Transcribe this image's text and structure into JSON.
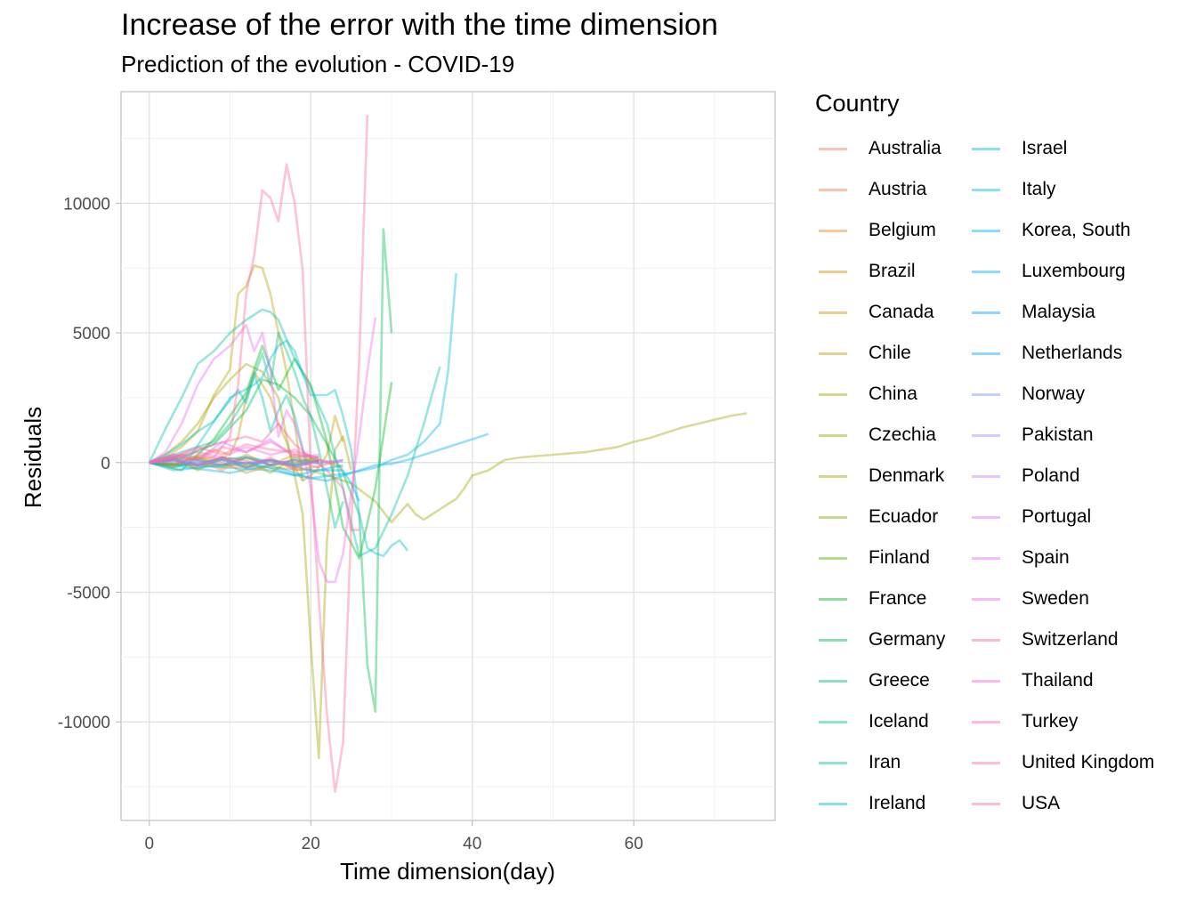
{
  "title": "Increase of the error with the time dimension",
  "subtitle": "Prediction of the evolution - COVID-19",
  "legend": {
    "title": "Country",
    "items": [
      {
        "name": "Australia",
        "color": "#F8766D"
      },
      {
        "name": "Austria",
        "color": "#F27D52"
      },
      {
        "name": "Belgium",
        "color": "#E7861B"
      },
      {
        "name": "Brazil",
        "color": "#D89000"
      },
      {
        "name": "Canada",
        "color": "#C49A00"
      },
      {
        "name": "Chile",
        "color": "#B8A000"
      },
      {
        "name": "China",
        "color": "#A3A500"
      },
      {
        "name": "Czechia",
        "color": "#8FAA00"
      },
      {
        "name": "Denmark",
        "color": "#A3A500"
      },
      {
        "name": "Ecuador",
        "color": "#72B000"
      },
      {
        "name": "Finland",
        "color": "#53B400"
      },
      {
        "name": "France",
        "color": "#00B81F"
      },
      {
        "name": "Germany",
        "color": "#00BB4E"
      },
      {
        "name": "Greece",
        "color": "#00BE70"
      },
      {
        "name": "Iceland",
        "color": "#00C08B"
      },
      {
        "name": "Iran",
        "color": "#00C1A3"
      },
      {
        "name": "Ireland",
        "color": "#00BFB8"
      },
      {
        "name": "Israel",
        "color": "#00BDD0"
      },
      {
        "name": "Italy",
        "color": "#00BAE0"
      },
      {
        "name": "Korea, South",
        "color": "#00B4EF"
      },
      {
        "name": "Luxembourg",
        "color": "#00B0F6"
      },
      {
        "name": "Malaysia",
        "color": "#00A5FF"
      },
      {
        "name": "Netherlands",
        "color": "#00A9FF"
      },
      {
        "name": "Norway",
        "color": "#7997FF"
      },
      {
        "name": "Pakistan",
        "color": "#9590FF"
      },
      {
        "name": "Poland",
        "color": "#C77CFF"
      },
      {
        "name": "Portugal",
        "color": "#DC71FA"
      },
      {
        "name": "Spain",
        "color": "#E76BF3"
      },
      {
        "name": "Sweden",
        "color": "#F564E3"
      },
      {
        "name": "Switzerland",
        "color": "#F8669B"
      },
      {
        "name": "Thailand",
        "color": "#FD61D1"
      },
      {
        "name": "Turkey",
        "color": "#FF62BC"
      },
      {
        "name": "United Kingdom",
        "color": "#FF6C91"
      },
      {
        "name": "USA",
        "color": "#FF6A98"
      }
    ]
  },
  "chart_data": {
    "type": "line",
    "title": "Increase of the error with the time dimension",
    "subtitle": "Prediction of the evolution - COVID-19",
    "xlabel": "Time dimension(day)",
    "ylabel": "Residuals",
    "xlim": [
      -3.5,
      77.5
    ],
    "ylim": [
      -13800,
      14300
    ],
    "xticks": [
      0,
      20,
      40,
      60
    ],
    "xtick_labels": [
      "0",
      "20",
      "40",
      "60"
    ],
    "yticks": [
      10000,
      5000,
      0,
      -5000,
      -10000
    ],
    "ytick_labels": [
      "10000",
      "5000",
      "0",
      "-5000",
      "-10000"
    ],
    "grid": true,
    "legend_position": "right",
    "series": [
      {
        "name": "Canada",
        "x": [
          0,
          2,
          4,
          6,
          8,
          10,
          11,
          12,
          13,
          14,
          15,
          16,
          17,
          18,
          19,
          20,
          21,
          22,
          23,
          24
        ],
        "y": [
          0,
          100,
          300,
          200,
          500,
          300,
          1000,
          2500,
          3500,
          3000,
          2500,
          1500,
          800,
          -200,
          -700,
          -500,
          -200,
          300,
          1800,
          800
        ]
      },
      {
        "name": "Chile",
        "x": [
          0,
          2,
          4,
          6,
          8,
          10,
          11,
          12,
          13,
          14,
          15,
          16,
          17,
          18,
          19
        ],
        "y": [
          0,
          200,
          600,
          1200,
          2600,
          3600,
          6500,
          6800,
          7600,
          7500,
          6500,
          5000,
          3500,
          1500,
          -700
        ]
      },
      {
        "name": "China",
        "x": [
          0,
          10,
          20,
          25,
          28,
          30,
          32,
          33,
          34,
          35,
          36,
          37,
          38,
          39,
          40,
          42,
          44,
          46,
          48,
          50,
          52,
          54,
          56,
          58,
          60,
          62,
          64,
          66,
          68,
          70,
          72,
          74
        ],
        "y": [
          0,
          -100,
          -300,
          -800,
          -1500,
          -2300,
          -1600,
          -2000,
          -2200,
          -2000,
          -1800,
          -1600,
          -1400,
          -1000,
          -500,
          -300,
          100,
          200,
          250,
          300,
          350,
          400,
          500,
          600,
          800,
          950,
          1150,
          1350,
          1500,
          1650,
          1800,
          1900
        ]
      },
      {
        "name": "Denmark",
        "x": [
          0,
          2,
          4,
          6,
          8,
          10,
          12,
          14,
          16,
          18,
          19,
          20,
          21,
          22,
          23,
          24,
          25
        ],
        "y": [
          0,
          300,
          800,
          1500,
          2500,
          3200,
          3800,
          3500,
          2500,
          -500,
          -2000,
          -7000,
          -11400,
          -3000,
          500,
          1000,
          -300
        ]
      },
      {
        "name": "Germany",
        "x": [
          0,
          4,
          8,
          12,
          14,
          16,
          18,
          20,
          22,
          24,
          26,
          27,
          28,
          29,
          30
        ],
        "y": [
          0,
          200,
          700,
          2000,
          3200,
          3000,
          2500,
          1800,
          700,
          -400,
          -2000,
          -7800,
          -9600,
          9000,
          5000
        ]
      },
      {
        "name": "France",
        "x": [
          0,
          4,
          8,
          12,
          14,
          16,
          18,
          20,
          22,
          24,
          26,
          28,
          30
        ],
        "y": [
          0,
          -300,
          900,
          2700,
          4500,
          2800,
          4000,
          3000,
          800,
          -2500,
          -3700,
          -1000,
          3100
        ]
      },
      {
        "name": "Iceland",
        "x": [
          0,
          2,
          4,
          6,
          8,
          10,
          12,
          14,
          15,
          16,
          17,
          18,
          19,
          20,
          21,
          22,
          23,
          24
        ],
        "y": [
          0,
          200,
          400,
          600,
          800,
          1500,
          2500,
          4200,
          3000,
          5000,
          4300,
          3500,
          2500,
          1800,
          500,
          -1000,
          -2500,
          -1500
        ]
      },
      {
        "name": "Iran",
        "x": [
          0,
          2,
          4,
          6,
          8,
          10,
          12,
          14,
          15,
          16,
          18,
          20,
          22,
          24,
          26,
          28,
          30,
          32,
          34,
          36
        ],
        "y": [
          0,
          1300,
          2500,
          3800,
          4300,
          5000,
          5500,
          5900,
          5800,
          5500,
          4000,
          2900,
          1500,
          -1000,
          -3600,
          -3300,
          -2000,
          -500,
          1500,
          3700
        ]
      },
      {
        "name": "Ireland",
        "x": [
          0,
          2,
          4,
          6,
          8,
          10,
          11,
          12,
          13,
          14,
          15,
          16,
          17,
          18,
          19,
          20
        ],
        "y": [
          0,
          300,
          700,
          1200,
          1600,
          2400,
          2800,
          2300,
          3400,
          2500,
          1200,
          2000,
          2600,
          1800,
          500,
          -300
        ]
      },
      {
        "name": "Israel",
        "x": [
          0,
          5,
          10,
          13,
          14,
          15,
          16,
          17,
          18,
          19,
          20,
          21,
          22,
          23,
          24,
          25,
          26,
          27,
          28,
          29,
          30,
          31,
          32
        ],
        "y": [
          0,
          200,
          2500,
          3000,
          3300,
          4000,
          4500,
          4700,
          4300,
          3400,
          2600,
          2600,
          2600,
          2800,
          1800,
          500,
          -2000,
          -3300,
          -3500,
          -3600,
          -3200,
          -3000,
          -3400
        ]
      },
      {
        "name": "Italy",
        "x": [
          0,
          5,
          10,
          15,
          20,
          25,
          28,
          30,
          32,
          34,
          36,
          37,
          38
        ],
        "y": [
          0,
          -200,
          -400,
          -100,
          -600,
          -400,
          -200,
          100,
          300,
          800,
          1500,
          3500,
          7300
        ]
      },
      {
        "name": "Luxembourg",
        "x": [
          0,
          5,
          10,
          15,
          20,
          22,
          24,
          26,
          28,
          30,
          32,
          34,
          36,
          38,
          40,
          42
        ],
        "y": [
          0,
          -100,
          -200,
          -300,
          -600,
          -700,
          -500,
          -300,
          -100,
          -50,
          100,
          300,
          500,
          700,
          900,
          1100
        ]
      },
      {
        "name": "Spain",
        "x": [
          0,
          2,
          4,
          6,
          8,
          10,
          12,
          13,
          14,
          15,
          16,
          17,
          18,
          19,
          20,
          21,
          22,
          23,
          24,
          25,
          26,
          27,
          28
        ],
        "y": [
          0,
          400,
          1500,
          3000,
          4000,
          4500,
          5300,
          4300,
          5000,
          3500,
          1000,
          2000,
          1500,
          500,
          -1000,
          -3800,
          -4600,
          -4600,
          -3500,
          -1200,
          1000,
          3500,
          5600
        ]
      },
      {
        "name": "USA",
        "x": [
          0,
          4,
          8,
          10,
          11,
          12,
          13,
          14,
          15,
          16,
          17,
          18,
          19,
          20,
          21,
          22,
          23,
          24,
          25,
          26,
          27
        ],
        "y": [
          0,
          100,
          200,
          1000,
          3000,
          6500,
          8000,
          10500,
          10200,
          9300,
          11500,
          10000,
          7400,
          -300,
          -5300,
          -9700,
          -12700,
          -10800,
          -2500,
          4000,
          13400
        ]
      },
      {
        "name": "Switzerland",
        "x": [
          0,
          4,
          8,
          12,
          14,
          16,
          18,
          20,
          22,
          24,
          25,
          26
        ],
        "y": [
          0,
          300,
          700,
          1000,
          800,
          1500,
          700,
          200,
          -300,
          -1000,
          -2600,
          -2600
        ]
      },
      {
        "name": "Netherlands",
        "x": [
          0,
          4,
          8,
          12,
          16,
          20,
          24,
          25,
          26
        ],
        "y": [
          0,
          -100,
          100,
          200,
          0,
          -300,
          -300,
          -800,
          -1500
        ]
      },
      {
        "name": "Belgium",
        "x": [
          0,
          3,
          6,
          9,
          12,
          15,
          18,
          21,
          24
        ],
        "y": [
          0,
          -100,
          200,
          0,
          -400,
          -100,
          300,
          100,
          -200
        ]
      },
      {
        "name": "Brazil",
        "x": [
          0,
          3,
          6,
          9,
          12,
          15,
          18,
          21
        ],
        "y": [
          0,
          100,
          -200,
          200,
          -100,
          100,
          -200,
          100
        ]
      },
      {
        "name": "Australia",
        "x": [
          0,
          3,
          6,
          9,
          12,
          15,
          18,
          21,
          24
        ],
        "y": [
          0,
          -150,
          300,
          100,
          -200,
          200,
          -300,
          -150,
          100
        ]
      },
      {
        "name": "Austria",
        "x": [
          0,
          3,
          6,
          9,
          12,
          15,
          18,
          21
        ],
        "y": [
          0,
          200,
          100,
          -300,
          200,
          -100,
          100,
          -200
        ]
      },
      {
        "name": "Czechia",
        "x": [
          0,
          3,
          6,
          9,
          12,
          15,
          18,
          21
        ],
        "y": [
          0,
          200,
          -300,
          200,
          100,
          -400,
          200,
          0
        ]
      },
      {
        "name": "Ecuador",
        "x": [
          0,
          3,
          6,
          9,
          12,
          15,
          18,
          21
        ],
        "y": [
          0,
          -100,
          200,
          -200,
          300,
          -100,
          0,
          200
        ]
      },
      {
        "name": "Finland",
        "x": [
          0,
          3,
          6,
          9,
          12,
          15,
          18,
          21
        ],
        "y": [
          0,
          100,
          -100,
          200,
          -200,
          100,
          -100,
          100
        ]
      },
      {
        "name": "Greece",
        "x": [
          0,
          3,
          6,
          9,
          12,
          15,
          18,
          21
        ],
        "y": [
          0,
          -200,
          100,
          -100,
          200,
          -100,
          100,
          0
        ]
      },
      {
        "name": "Korea, South",
        "x": [
          0,
          3,
          6,
          9,
          12,
          15,
          18,
          21,
          24
        ],
        "y": [
          0,
          -300,
          -200,
          -100,
          0,
          -200,
          -500,
          -300,
          -100
        ]
      },
      {
        "name": "Malaysia",
        "x": [
          0,
          3,
          6,
          9,
          12,
          15,
          18,
          21
        ],
        "y": [
          0,
          100,
          -100,
          100,
          -50,
          100,
          -100,
          50
        ]
      },
      {
        "name": "Norway",
        "x": [
          0,
          3,
          6,
          9,
          12,
          15,
          18,
          21
        ],
        "y": [
          0,
          200,
          -100,
          150,
          -200,
          100,
          -100,
          50
        ]
      },
      {
        "name": "Pakistan",
        "x": [
          0,
          3,
          6,
          9,
          12,
          15,
          18,
          21,
          24
        ],
        "y": [
          0,
          50,
          -100,
          100,
          -50,
          50,
          -50,
          0,
          100
        ]
      },
      {
        "name": "Poland",
        "x": [
          0,
          3,
          6,
          9,
          12,
          15,
          18,
          21,
          24
        ],
        "y": [
          0,
          100,
          50,
          -100,
          200,
          -100,
          100,
          -50,
          50
        ]
      },
      {
        "name": "Portugal",
        "x": [
          0,
          3,
          6,
          9,
          12,
          15,
          18,
          21
        ],
        "y": [
          0,
          300,
          100,
          800,
          400,
          900,
          200,
          300
        ]
      },
      {
        "name": "Sweden",
        "x": [
          0,
          3,
          6,
          9,
          12,
          15,
          18,
          21
        ],
        "y": [
          0,
          200,
          400,
          200,
          600,
          300,
          500,
          100
        ]
      },
      {
        "name": "Thailand",
        "x": [
          0,
          3,
          6,
          9,
          12,
          15,
          18,
          21,
          23
        ],
        "y": [
          0,
          100,
          -100,
          200,
          0,
          100,
          -200,
          100,
          0
        ]
      },
      {
        "name": "Turkey",
        "x": [
          0,
          3,
          6,
          9,
          12,
          15,
          18,
          21
        ],
        "y": [
          0,
          300,
          100,
          600,
          400,
          800,
          300,
          200
        ]
      },
      {
        "name": "United Kingdom",
        "x": [
          0,
          3,
          6,
          9,
          12,
          15,
          18,
          21
        ],
        "y": [
          0,
          200,
          600,
          300,
          700,
          500,
          400,
          200
        ]
      }
    ]
  }
}
